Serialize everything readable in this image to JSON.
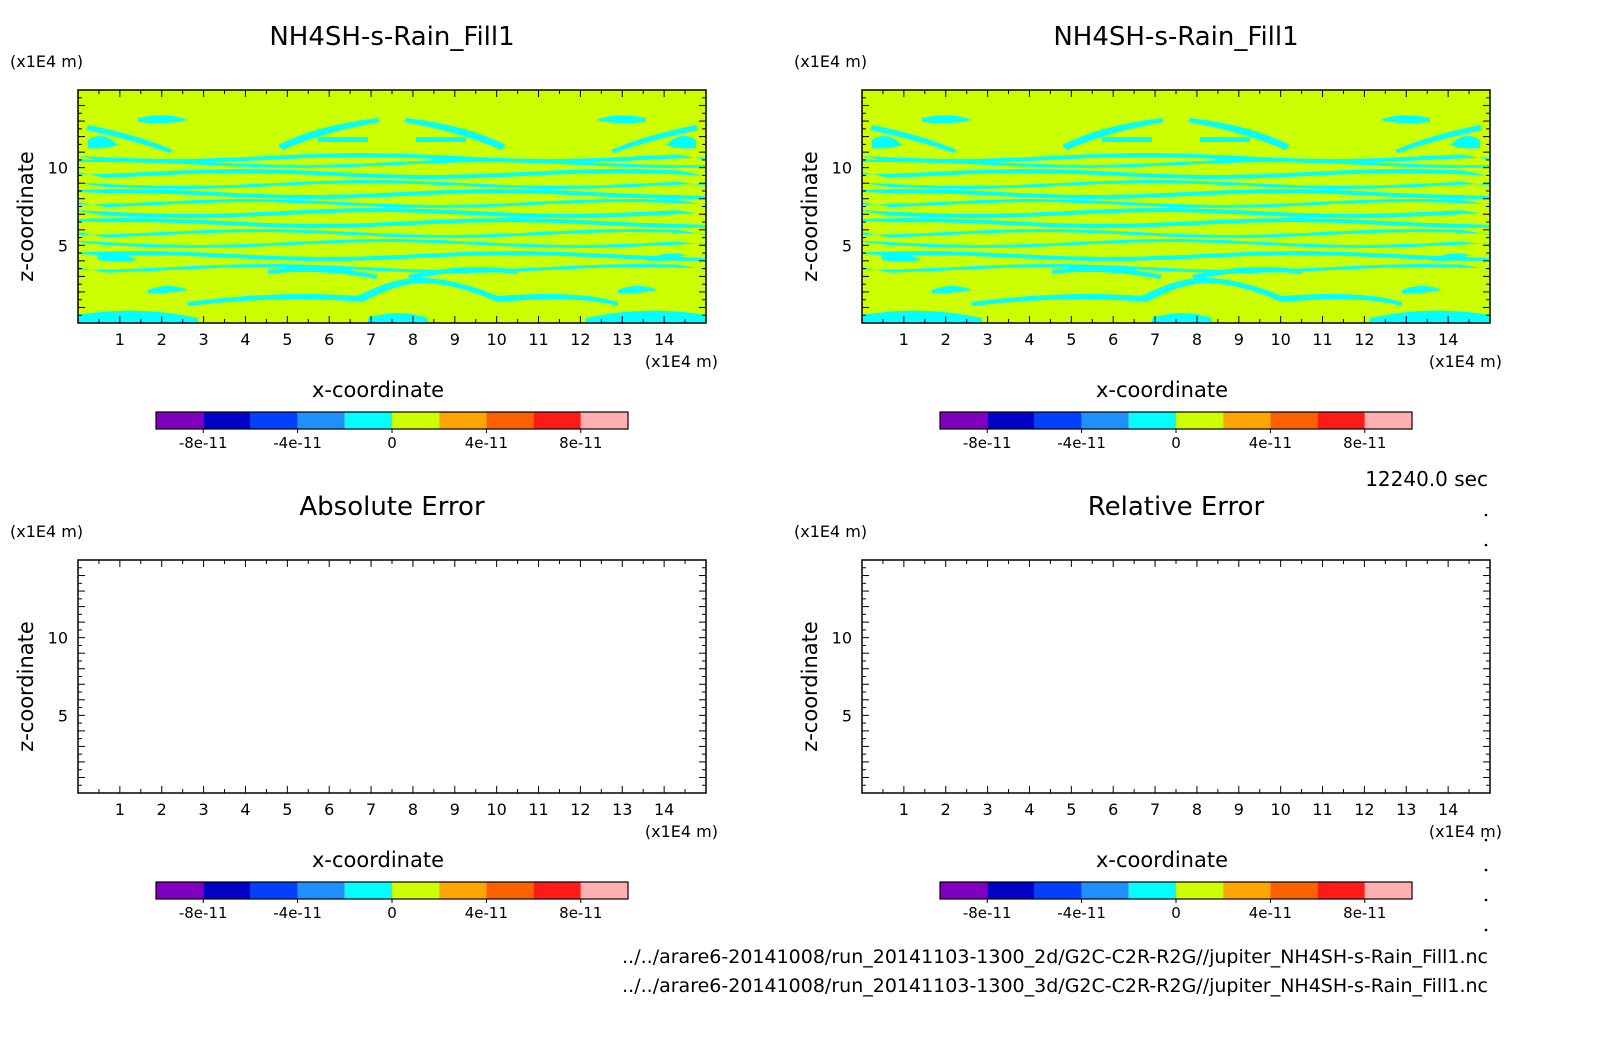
{
  "time_label": "12240.0 sec",
  "file_paths": [
    "../../arare6-20141008/run_20141103-1300_2d/G2C-C2R-R2G//jupiter_NH4SH-s-Rain_Fill1.nc",
    "../../arare6-20141008/run_20141103-1300_3d/G2C-C2R-R2G//jupiter_NH4SH-s-Rain_Fill1.nc"
  ],
  "colors": {
    "field_yellow": "#ccff00",
    "field_cyan": "#00ffff",
    "axis": "#000000"
  },
  "chart_data": [
    {
      "type": "heatmap",
      "title": "NH4SH-s-Rain_Fill1",
      "xlabel": "x-coordinate",
      "ylabel": "z-coordinate",
      "x_unit": "(x1E4 m)",
      "z_unit": "(x1E4 m)",
      "xlim": [
        0,
        15
      ],
      "zlim": [
        0,
        15
      ],
      "x_ticks": [
        1,
        2,
        3,
        4,
        5,
        6,
        7,
        8,
        9,
        10,
        11,
        12,
        13,
        14
      ],
      "z_ticks": [
        5,
        10
      ],
      "field": "nonzero",
      "colorbar": {
        "levels": [
          "#8000c0",
          "#0000c8",
          "#0040ff",
          "#1e90ff",
          "#00ffff",
          "#ccff00",
          "#ffa500",
          "#ff6000",
          "#ff1a1a",
          "#ffb0b0"
        ],
        "tick_labels": [
          "-8e-11",
          "-4e-11",
          "0",
          "4e-11",
          "8e-11"
        ]
      }
    },
    {
      "type": "heatmap",
      "title": "NH4SH-s-Rain_Fill1",
      "xlabel": "x-coordinate",
      "ylabel": "z-coordinate",
      "x_unit": "(x1E4 m)",
      "z_unit": "(x1E4 m)",
      "xlim": [
        0,
        15
      ],
      "zlim": [
        0,
        15
      ],
      "x_ticks": [
        1,
        2,
        3,
        4,
        5,
        6,
        7,
        8,
        9,
        10,
        11,
        12,
        13,
        14
      ],
      "z_ticks": [
        5,
        10
      ],
      "field": "nonzero",
      "colorbar": {
        "levels": [
          "#8000c0",
          "#0000c8",
          "#0040ff",
          "#1e90ff",
          "#00ffff",
          "#ccff00",
          "#ffa500",
          "#ff6000",
          "#ff1a1a",
          "#ffb0b0"
        ],
        "tick_labels": [
          "-8e-11",
          "-4e-11",
          "0",
          "4e-11",
          "8e-11"
        ]
      }
    },
    {
      "type": "heatmap",
      "title": "Absolute Error",
      "xlabel": "x-coordinate",
      "ylabel": "z-coordinate",
      "x_unit": "(x1E4 m)",
      "z_unit": "(x1E4 m)",
      "xlim": [
        0,
        15
      ],
      "zlim": [
        0,
        15
      ],
      "x_ticks": [
        1,
        2,
        3,
        4,
        5,
        6,
        7,
        8,
        9,
        10,
        11,
        12,
        13,
        14
      ],
      "z_ticks": [
        5,
        10
      ],
      "field": "empty",
      "colorbar": {
        "levels": [
          "#8000c0",
          "#0000c8",
          "#0040ff",
          "#1e90ff",
          "#00ffff",
          "#ccff00",
          "#ffa500",
          "#ff6000",
          "#ff1a1a",
          "#ffb0b0"
        ],
        "tick_labels": [
          "-8e-11",
          "-4e-11",
          "0",
          "4e-11",
          "8e-11"
        ]
      }
    },
    {
      "type": "heatmap",
      "title": "Relative Error",
      "xlabel": "x-coordinate",
      "ylabel": "z-coordinate",
      "x_unit": "(x1E4 m)",
      "z_unit": "(x1E4 m)",
      "xlim": [
        0,
        15
      ],
      "zlim": [
        0,
        15
      ],
      "x_ticks": [
        1,
        2,
        3,
        4,
        5,
        6,
        7,
        8,
        9,
        10,
        11,
        12,
        13,
        14
      ],
      "z_ticks": [
        5,
        10
      ],
      "field": "empty",
      "colorbar": {
        "levels": [
          "#8000c0",
          "#0000c8",
          "#0040ff",
          "#1e90ff",
          "#00ffff",
          "#ccff00",
          "#ffa500",
          "#ff6000",
          "#ff1a1a",
          "#ffb0b0"
        ],
        "tick_labels": [
          "-8e-11",
          "-4e-11",
          "0",
          "4e-11",
          "8e-11"
        ]
      }
    }
  ]
}
